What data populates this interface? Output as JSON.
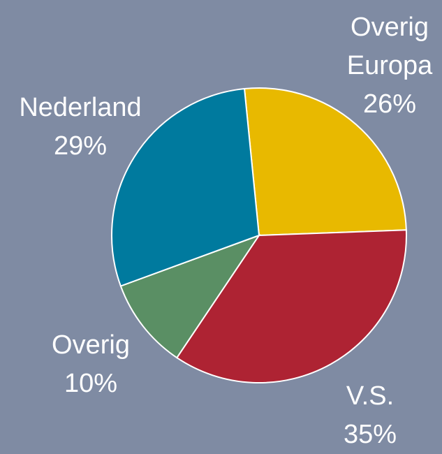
{
  "chart_data": {
    "type": "pie",
    "categories": [
      "Overig Europa",
      "V.S.",
      "Overig",
      "Nederland"
    ],
    "values": [
      26,
      35,
      10,
      29
    ],
    "value_labels": [
      "26%",
      "35%",
      "10%",
      "29%"
    ],
    "colors": [
      "#e8b900",
      "#ae2333",
      "#5a8f64",
      "#007a9e"
    ]
  }
}
